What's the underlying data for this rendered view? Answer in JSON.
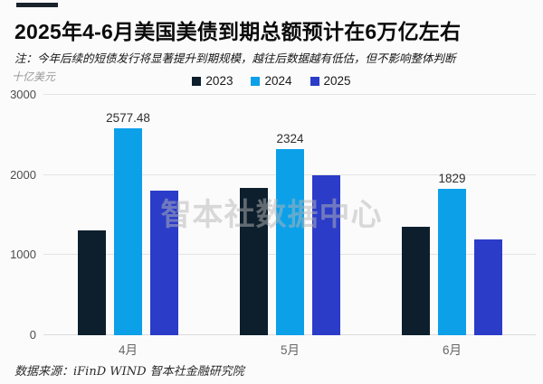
{
  "page": {
    "title": "2025年4-6月美国美债到期总额预计在6万亿左右",
    "note": "注：今年后续的短债发行将显著提升到期规模，越往后数据越有低估，但不影响整体判断",
    "unit_label": "十亿美元",
    "watermark": "智本社数据中心",
    "source": "数据来源：iFinD WIND 智本社金融研究院"
  },
  "colors": {
    "background": "#fbfbfc",
    "accent_dash": "#1a222c",
    "gridline": "#e4e4e4",
    "series_2023": "#0d1f2d",
    "series_2024": "#0ca0e9",
    "series_2025": "#2b3cc8",
    "watermark_gray": "#b6b6b6"
  },
  "chart_data": {
    "type": "bar",
    "categories": [
      "4月",
      "5月",
      "6月"
    ],
    "series": [
      {
        "name": "2023",
        "color": "#0d1f2d",
        "values": [
          1310,
          1840,
          1350
        ],
        "labels": [
          "",
          "",
          ""
        ]
      },
      {
        "name": "2024",
        "color": "#0ca0e9",
        "values": [
          2577.48,
          2324,
          1829
        ],
        "labels": [
          "2577.48",
          "2324",
          "1829"
        ]
      },
      {
        "name": "2025",
        "color": "#2b3cc8",
        "values": [
          1800,
          2000,
          1200
        ],
        "labels": [
          "",
          "",
          ""
        ]
      }
    ],
    "title": "2025年4-6月美国美债到期总额预计在6万亿左右",
    "xlabel": "",
    "ylabel": "十亿美元",
    "yticks": [
      0,
      1000,
      2000,
      3000
    ],
    "ylim": [
      0,
      3000
    ],
    "grid": true,
    "legend_position": "top-center"
  }
}
